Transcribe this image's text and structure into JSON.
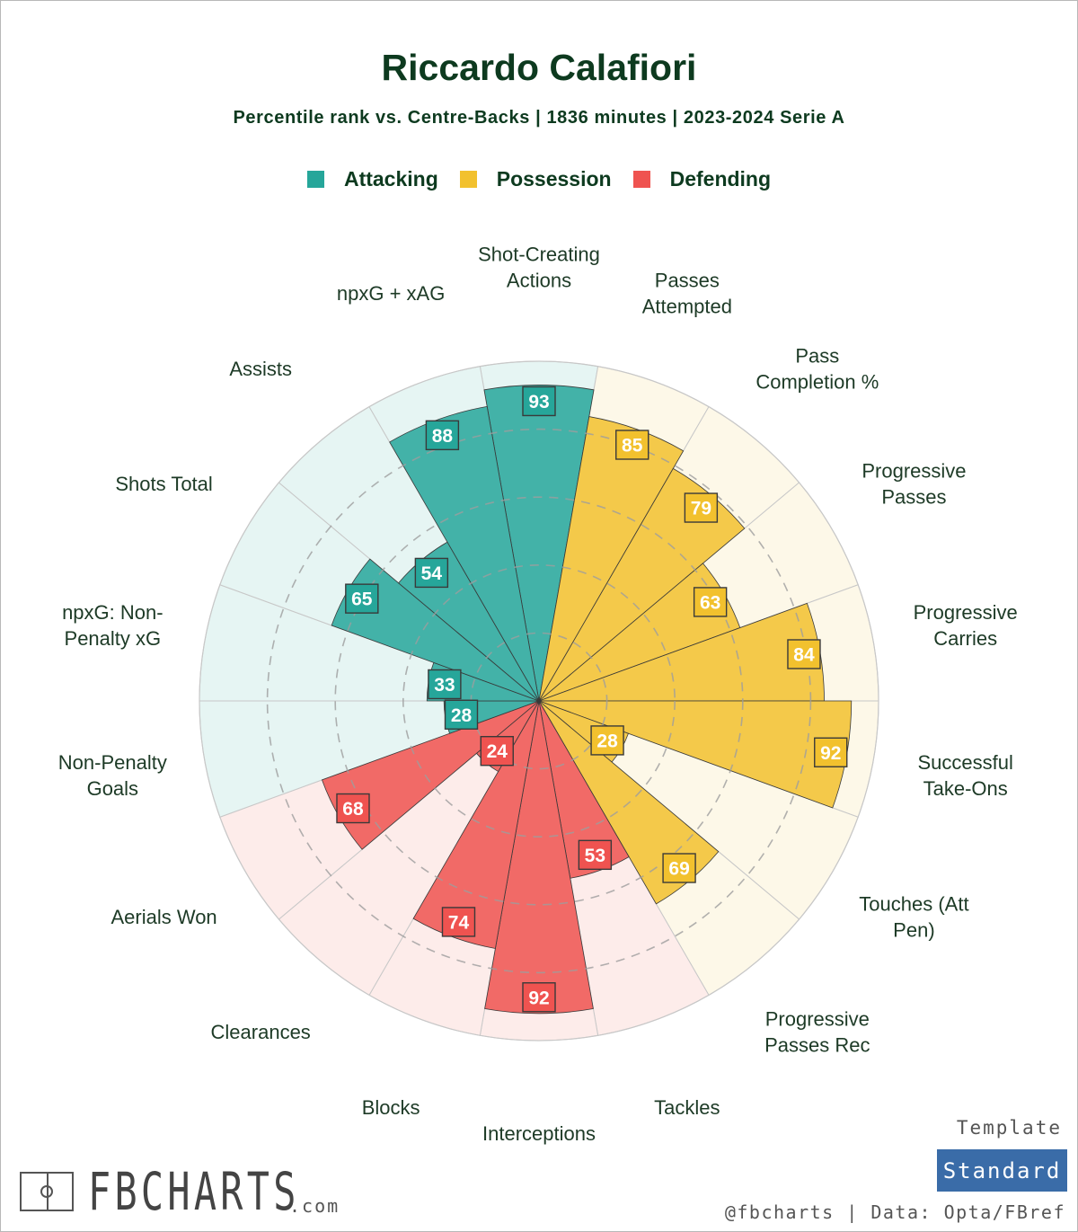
{
  "header": {
    "title": "Riccardo Calafiori",
    "subtitle": "Percentile rank vs. Centre-Backs | 1836 minutes | 2023-2024 Serie A"
  },
  "legend": [
    {
      "label": "Attacking",
      "color": "#26a69a"
    },
    {
      "label": "Possession",
      "color": "#f2c12e"
    },
    {
      "label": "Defending",
      "color": "#ef5350"
    }
  ],
  "chart_data": {
    "type": "polar-bar",
    "title": "Riccardo Calafiori",
    "rlim": [
      0,
      100
    ],
    "ring_ticks": [
      20,
      40,
      60,
      80
    ],
    "metrics": [
      {
        "label": "Shot-Creating Actions",
        "value": 93,
        "group": "Attacking"
      },
      {
        "label": "Passes Attempted",
        "value": 85,
        "group": "Possession"
      },
      {
        "label": "Pass Completion %",
        "value": 79,
        "group": "Possession"
      },
      {
        "label": "Progressive Passes",
        "value": 63,
        "group": "Possession"
      },
      {
        "label": "Progressive Carries",
        "value": 84,
        "group": "Possession"
      },
      {
        "label": "Successful Take-Ons",
        "value": 92,
        "group": "Possession"
      },
      {
        "label": "Touches (Att Pen)",
        "value": 28,
        "group": "Possession"
      },
      {
        "label": "Progressive Passes Rec",
        "value": 69,
        "group": "Possession"
      },
      {
        "label": "Tackles",
        "value": 53,
        "group": "Defending"
      },
      {
        "label": "Interceptions",
        "value": 92,
        "group": "Defending"
      },
      {
        "label": "Blocks",
        "value": 74,
        "group": "Defending"
      },
      {
        "label": "Clearances",
        "value": 24,
        "group": "Defending"
      },
      {
        "label": "Aerials Won",
        "value": 68,
        "group": "Defending"
      },
      {
        "label": "Non-Penalty Goals",
        "value": 28,
        "group": "Attacking"
      },
      {
        "label": "npxG: Non-Penalty xG",
        "value": 33,
        "group": "Attacking"
      },
      {
        "label": "Shots Total",
        "value": 65,
        "group": "Attacking"
      },
      {
        "label": "Assists",
        "value": 54,
        "group": "Attacking"
      },
      {
        "label": "npxG + xAG",
        "value": 88,
        "group": "Attacking"
      }
    ],
    "metric_display_lines": [
      [
        "Shot-Creating",
        "Actions"
      ],
      [
        "Passes",
        "Attempted"
      ],
      [
        "Pass",
        "Completion %"
      ],
      [
        "Progressive",
        "Passes"
      ],
      [
        "Progressive",
        "Carries"
      ],
      [
        "Successful",
        "Take-Ons"
      ],
      [
        "Touches (Att",
        "Pen)"
      ],
      [
        "Progressive",
        "Passes Rec"
      ],
      [
        "Tackles"
      ],
      [
        "Interceptions"
      ],
      [
        "Blocks"
      ],
      [
        "Clearances"
      ],
      [
        "Aerials Won"
      ],
      [
        "Non-Penalty",
        "Goals"
      ],
      [
        "npxG: Non-",
        "Penalty xG"
      ],
      [
        "Shots Total"
      ],
      [
        "Assists"
      ],
      [
        "npxG + xAG"
      ]
    ],
    "group_colors": {
      "Attacking": {
        "bar": "#26a69a",
        "bg": "#e6f5f3",
        "label_bg": "#26a69a"
      },
      "Possession": {
        "bar": "#f2c12e",
        "bg": "#fdf8e8",
        "label_bg": "#f2c12e"
      },
      "Defending": {
        "bar": "#ef5350",
        "bg": "#fdecea",
        "label_bg": "#ef5350"
      }
    }
  },
  "branding": {
    "logo_text": "FBCHARTS",
    "logo_suffix": ".com",
    "template_label": "Template",
    "template_value": "Standard",
    "credit": "@fbcharts | Data: Opta/FBref"
  }
}
